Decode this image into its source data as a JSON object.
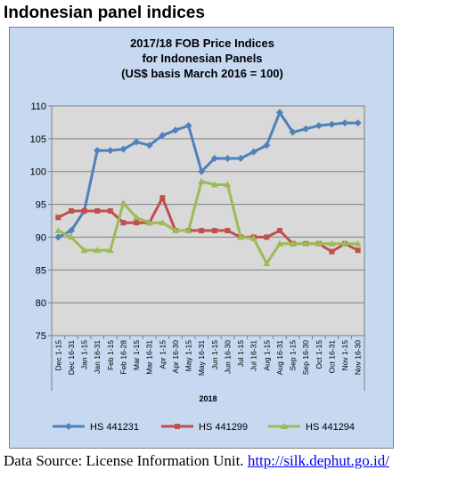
{
  "heading": "Indonesian panel indices",
  "source": {
    "prefix": "Data Source: License Information Unit.",
    "link": "http://silk.dephut.go.id/"
  },
  "colors": {
    "frame": "#c6d9f1",
    "plot": "#d9d9d9",
    "grid": "#808080",
    "series": [
      "#4f81bd",
      "#c0504d",
      "#9bbb59"
    ]
  },
  "chart_data": {
    "type": "line",
    "title_lines": [
      "2017/18 FOB Price Indices",
      "for Indonesian Panels",
      "(US$ basis March 2016 = 100)"
    ],
    "x": [
      "Dec 1-15",
      "Dec 16-31",
      "Jan 1-15",
      "Jan 16-31",
      "Feb 1-15",
      "Feb 16-28",
      "Mar 1-15",
      "Mar 16-31",
      "Apr 1-15",
      "Apr 16-30",
      "May 1-15",
      "May 16-31",
      "Jun 1-15",
      "Jun 16-30",
      "Jul 1-15",
      "Jul 16-31",
      "Aug 1-15",
      "Aug 16-31",
      "Sep 1-15",
      "Sep 16-30",
      "Oct 1-15",
      "Oct 16-31",
      "Nov 1-15",
      "Nov 16-30"
    ],
    "x_group_label": "2018",
    "yticks": [
      75,
      80,
      85,
      90,
      95,
      100,
      105,
      110
    ],
    "ylim": [
      75,
      110
    ],
    "grid": true,
    "legend_position": "bottom",
    "series": [
      {
        "name": "HS 441231",
        "values": [
          90,
          91,
          94,
          103.2,
          103.2,
          103.4,
          104.5,
          104,
          105.5,
          106.3,
          107,
          100,
          102,
          102,
          102,
          103,
          104,
          109,
          106,
          106.5,
          107,
          107.2,
          107.4,
          107.4
        ]
      },
      {
        "name": "HS 441299",
        "values": [
          93,
          94,
          94,
          94,
          94,
          92.2,
          92.2,
          92.2,
          96,
          91,
          91,
          91,
          91,
          91,
          90,
          90,
          90,
          91,
          89,
          89,
          89,
          87.8,
          89,
          88
        ]
      },
      {
        "name": "HS 441294",
        "values": [
          91,
          90,
          88,
          88,
          88,
          95.2,
          93,
          92.2,
          92.2,
          91,
          91,
          98.5,
          98,
          98,
          90,
          89.8,
          86,
          89,
          89,
          89,
          89,
          89,
          89,
          89
        ]
      }
    ]
  }
}
